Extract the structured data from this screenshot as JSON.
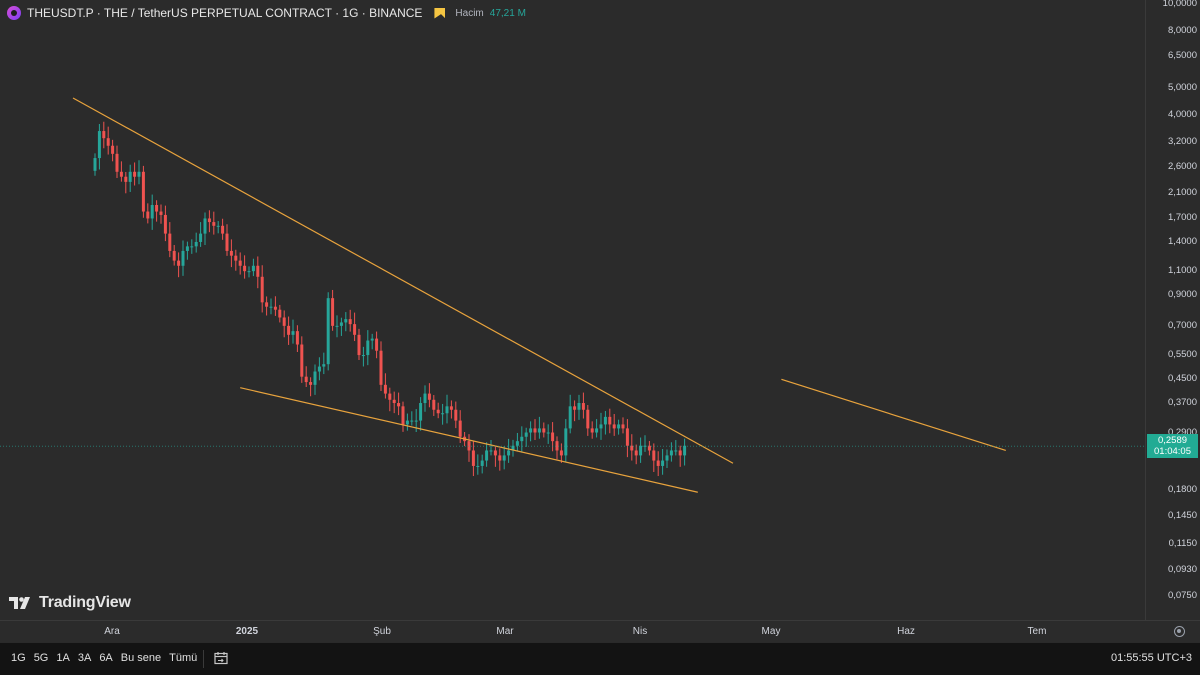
{
  "header": {
    "symbol": "THEUSDT.P · THE / TetherUS PERPETUAL CONTRACT · 1G · BINANCE",
    "volume_label": "Hacim",
    "volume_value": "47,21 M"
  },
  "watermark": "TradingView",
  "price_scale": {
    "ticks": [
      "10,0000",
      "8,0000",
      "6,5000",
      "5,0000",
      "4,0000",
      "3,2000",
      "2,6000",
      "2,1000",
      "1,7000",
      "1,4000",
      "1,1000",
      "0,9000",
      "0,7000",
      "0,5500",
      "0,4500",
      "0,3700",
      "0,2900",
      "0,1800",
      "0,1450",
      "0,1150",
      "0,0930",
      "0,0750"
    ],
    "current_price": "0,2589",
    "countdown": "01:04:05"
  },
  "time_scale": {
    "ticks": [
      "Ara",
      "2025",
      "Şub",
      "Mar",
      "Nis",
      "May",
      "Haz",
      "Tem"
    ]
  },
  "bottom_bar": {
    "ranges": [
      "1G",
      "5G",
      "1A",
      "3A",
      "6A",
      "Bu sene",
      "Tümü"
    ],
    "clock": "01:55:55 UTC+3"
  },
  "colors": {
    "up": "#26a69a",
    "down": "#ef5350",
    "trendline": "#e8a33d",
    "background": "#2b2b2b",
    "price_line": "#26a69a"
  },
  "icons": {
    "symbol_logo": "the-token-logo-icon",
    "flag": "flag-icon",
    "settings": "gear-icon",
    "date_range": "calendar-icon"
  },
  "chart_data": {
    "type": "candlestick",
    "scale": "log",
    "interval": "1D",
    "ylim": [
      0.072,
      10.0
    ],
    "current_price": 0.2589,
    "closes": [
      2.8,
      3.5,
      3.3,
      3.1,
      2.9,
      2.5,
      2.4,
      2.3,
      2.5,
      2.4,
      2.5,
      1.8,
      1.7,
      1.9,
      1.8,
      1.75,
      1.5,
      1.3,
      1.2,
      1.15,
      1.3,
      1.35,
      1.35,
      1.4,
      1.5,
      1.7,
      1.65,
      1.6,
      1.6,
      1.5,
      1.3,
      1.25,
      1.2,
      1.15,
      1.1,
      1.1,
      1.15,
      1.05,
      0.85,
      0.82,
      0.82,
      0.8,
      0.75,
      0.7,
      0.65,
      0.67,
      0.6,
      0.46,
      0.44,
      0.43,
      0.48,
      0.5,
      0.51,
      0.88,
      0.7,
      0.7,
      0.72,
      0.74,
      0.71,
      0.65,
      0.55,
      0.55,
      0.62,
      0.63,
      0.57,
      0.43,
      0.4,
      0.38,
      0.37,
      0.36,
      0.31,
      0.32,
      0.32,
      0.32,
      0.37,
      0.4,
      0.38,
      0.35,
      0.34,
      0.34,
      0.36,
      0.35,
      0.32,
      0.28,
      0.27,
      0.25,
      0.22,
      0.22,
      0.23,
      0.25,
      0.25,
      0.24,
      0.23,
      0.24,
      0.25,
      0.26,
      0.27,
      0.28,
      0.29,
      0.3,
      0.29,
      0.3,
      0.29,
      0.29,
      0.27,
      0.25,
      0.24,
      0.3,
      0.36,
      0.35,
      0.37,
      0.35,
      0.3,
      0.29,
      0.3,
      0.31,
      0.33,
      0.31,
      0.3,
      0.31,
      0.3,
      0.26,
      0.25,
      0.24,
      0.26,
      0.26,
      0.25,
      0.23,
      0.22,
      0.23,
      0.24,
      0.25,
      0.25,
      0.24,
      0.26
    ],
    "trendlines": [
      {
        "from": {
          "x": "2024-11-22",
          "y": 4.6
        },
        "to": {
          "x": "2025-04-21",
          "y": 0.225
        }
      },
      {
        "from": {
          "x": "2024-12-30",
          "y": 0.42
        },
        "to": {
          "x": "2025-04-13",
          "y": 0.177
        }
      },
      {
        "from": {
          "x": "2025-05-02",
          "y": 0.45
        },
        "to": {
          "x": "2025-06-22",
          "y": 0.25
        }
      }
    ]
  }
}
